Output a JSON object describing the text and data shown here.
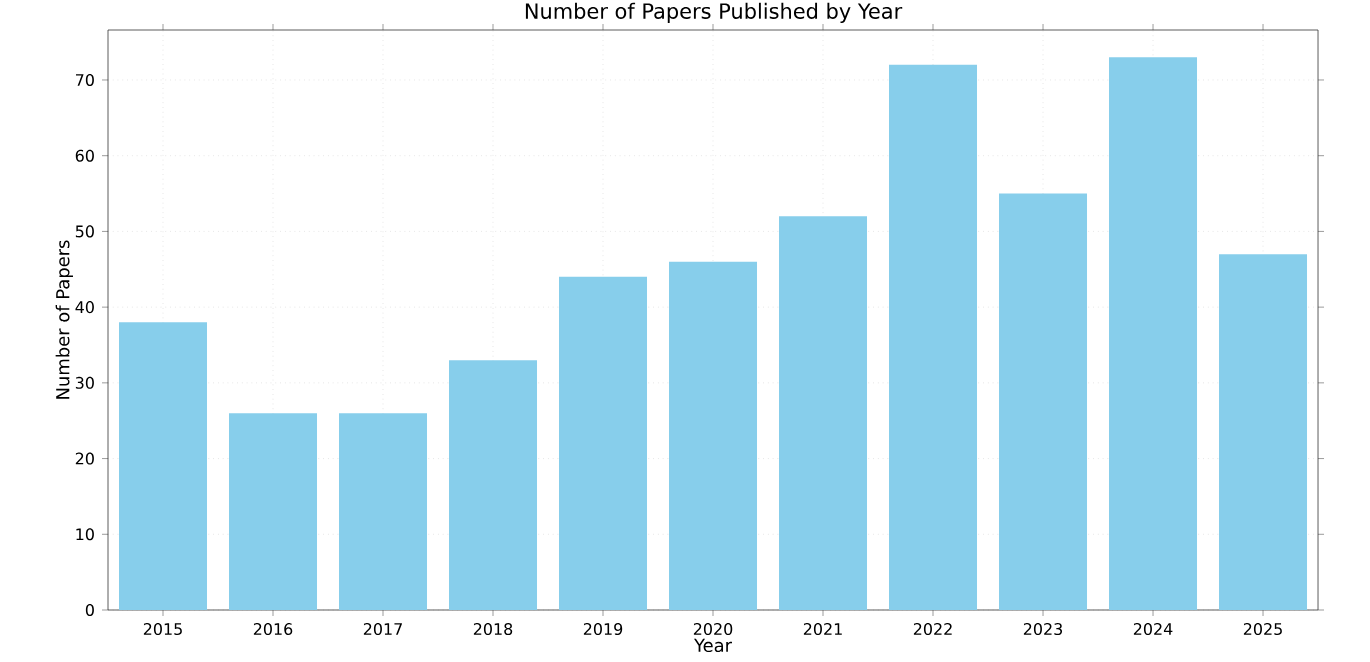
{
  "chart_data": {
    "type": "bar",
    "title": "Number of Papers Published by Year",
    "xlabel": "Year",
    "ylabel": "Number of Papers",
    "categories": [
      "2015",
      "2016",
      "2017",
      "2018",
      "2019",
      "2020",
      "2021",
      "2022",
      "2023",
      "2024",
      "2025"
    ],
    "values": [
      38,
      26,
      26,
      33,
      44,
      46,
      52,
      72,
      55,
      73,
      47
    ],
    "color": "#87ceeb",
    "ylim": [
      0,
      76.6
    ],
    "yticks": [
      0,
      10,
      20,
      30,
      40,
      50,
      60,
      70
    ],
    "grid": true
  }
}
